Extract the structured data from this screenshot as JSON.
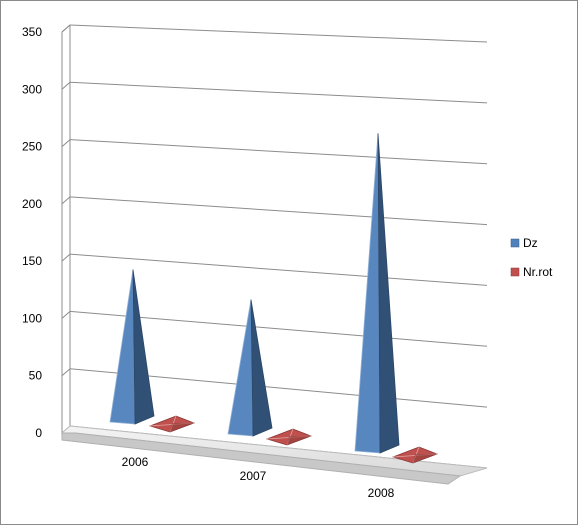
{
  "chart_data": {
    "type": "bar",
    "style": "3d-pyramid",
    "title": "",
    "xlabel": "",
    "ylabel": "",
    "categories": [
      "2006",
      "2007",
      "2008"
    ],
    "series": [
      {
        "name": "Dz",
        "values": [
          145,
          128,
          300
        ],
        "color": "#4f81bd"
      },
      {
        "name": "Nr.rot",
        "values": [
          3,
          3,
          3
        ],
        "color": "#c0504d"
      }
    ],
    "ylim": [
      0,
      350
    ],
    "yticks": [
      "0",
      "50",
      "100",
      "150",
      "200",
      "250",
      "300",
      "350"
    ],
    "grid": true,
    "legend_position": "right"
  }
}
